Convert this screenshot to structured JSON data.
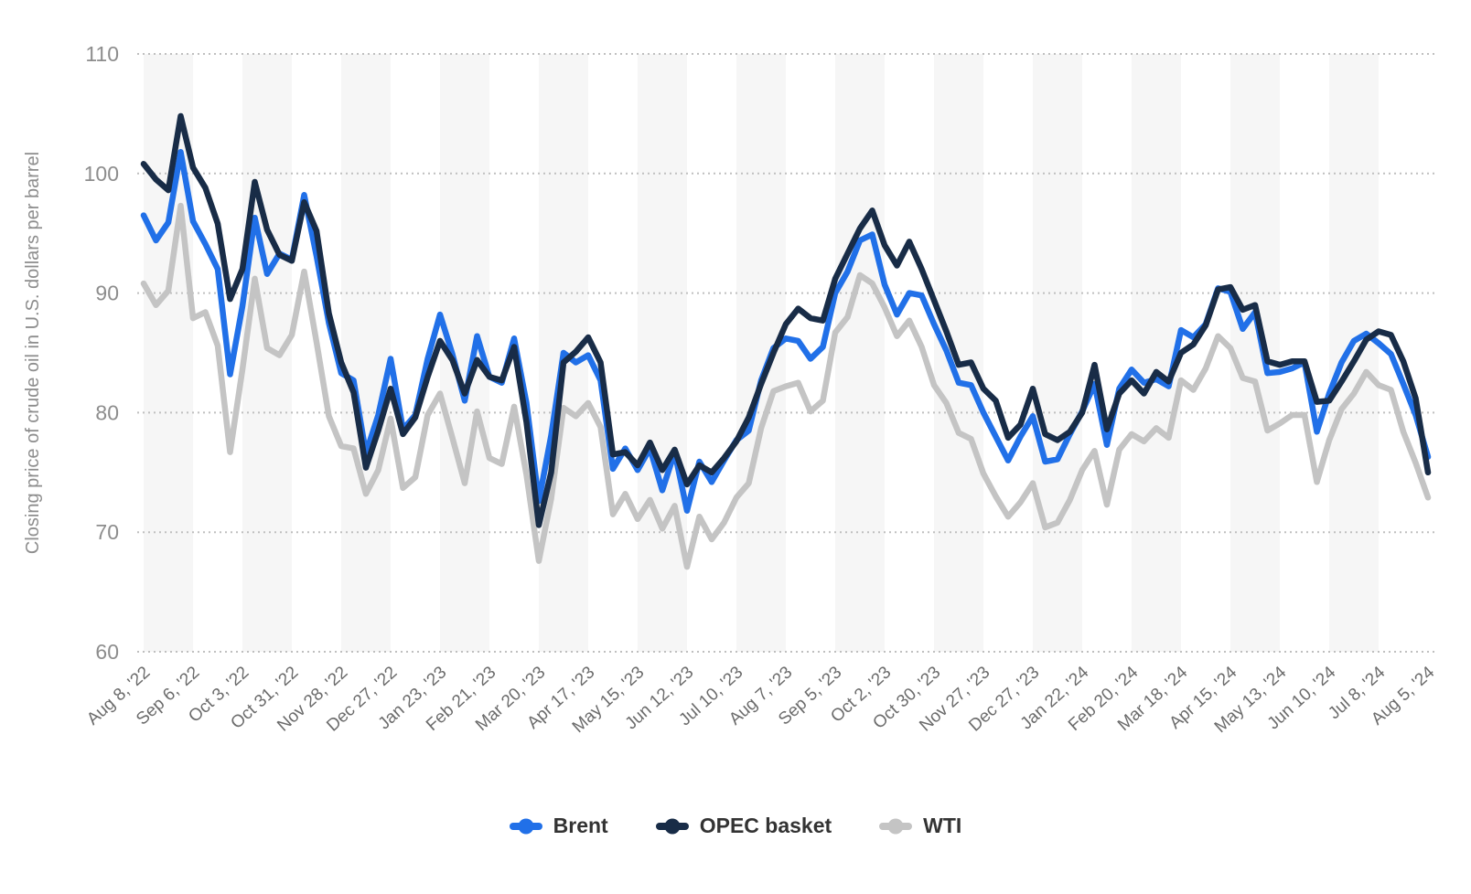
{
  "chart": {
    "y_axis_title": "Closing price of crude oil in U.S. dollars per barrel",
    "y_tick_labels": [
      "60",
      "70",
      "80",
      "90",
      "100",
      "110"
    ],
    "background_band_color": "#f6f6f6",
    "gridline_color": "#bfbfbf",
    "axis_text_color": "#8d8d8d"
  },
  "chart_data": {
    "type": "line",
    "title": "",
    "xlabel": "",
    "ylabel": "Closing price of crude oil in U.S. dollars per barrel",
    "ylim": [
      60,
      110
    ],
    "y_ticks": [
      60,
      70,
      80,
      90,
      100,
      110
    ],
    "grid": "horizontal-dotted",
    "legend_position": "bottom",
    "x_unit": "week",
    "weeks_per_tick": 4,
    "x_tick_labels": [
      "Aug 8, '22",
      "Sep 6, '22",
      "Oct 3, '22",
      "Oct 31, '22",
      "Nov 28, '22",
      "Dec 27, '22",
      "Jan 23, '23",
      "Feb 21, '23",
      "Mar 20, '23",
      "Apr 17, '23",
      "May 15, '23",
      "Jun 12, '23",
      "Jul 10, '23",
      "Aug 7, '23",
      "Sep 5, '23",
      "Oct 2, '23",
      "Oct 30, '23",
      "Nov 27, '23",
      "Dec 27, '23",
      "Jan 22, '24",
      "Feb 20, '24",
      "Mar 18, '24",
      "Apr 15, '24",
      "May 13, '24",
      "Jun 10, '24",
      "Jul 8, '24",
      "Aug 5, '24"
    ],
    "series": [
      {
        "name": "Brent",
        "color": "#2170e8",
        "values": [
          96.5,
          94.4,
          95.9,
          101.8,
          96.0,
          94.1,
          92.0,
          83.2,
          88.9,
          96.3,
          91.6,
          93.3,
          92.8,
          98.2,
          93.1,
          87.5,
          83.3,
          82.7,
          76.6,
          79.8,
          84.5,
          78.6,
          79.8,
          84.5,
          88.2,
          84.9,
          81.0,
          86.4,
          83.0,
          82.5,
          86.2,
          80.8,
          72.6,
          78.1,
          85.0,
          84.2,
          84.8,
          82.7,
          75.3,
          77.0,
          75.2,
          77.0,
          73.5,
          76.7,
          71.8,
          75.9,
          74.2,
          76.0,
          77.7,
          78.5,
          82.7,
          85.4,
          86.2,
          86.0,
          84.5,
          85.5,
          90.0,
          91.8,
          94.4,
          94.9,
          90.7,
          88.2,
          90.0,
          89.8,
          87.4,
          85.2,
          82.5,
          82.3,
          80.0,
          78.0,
          76.0,
          78.0,
          79.7,
          75.9,
          76.1,
          78.2,
          80.1,
          82.4,
          77.3,
          82.0,
          83.6,
          82.5,
          82.8,
          82.2,
          86.9,
          86.3,
          87.4,
          90.4,
          90.1,
          87.0,
          88.4,
          83.3,
          83.4,
          83.7,
          84.2,
          78.4,
          81.6,
          84.2,
          86.0,
          86.6,
          85.8,
          84.9,
          82.4,
          79.8,
          76.3
        ]
      },
      {
        "name": "OPEC basket",
        "color": "#182c47",
        "values": [
          100.8,
          99.5,
          98.6,
          104.8,
          100.5,
          98.8,
          95.8,
          89.5,
          92.0,
          99.3,
          95.3,
          93.2,
          92.7,
          97.6,
          95.2,
          88.3,
          84.2,
          81.7,
          75.4,
          78.5,
          82.0,
          78.2,
          79.6,
          83.0,
          86.0,
          84.4,
          81.6,
          84.4,
          83.0,
          82.7,
          85.5,
          79.2,
          70.6,
          75.0,
          84.2,
          85.1,
          86.3,
          84.2,
          76.5,
          76.7,
          75.6,
          77.5,
          75.2,
          76.9,
          74.0,
          75.6,
          75.0,
          76.2,
          77.6,
          79.6,
          82.4,
          85.0,
          87.4,
          88.7,
          87.9,
          87.7,
          91.2,
          93.3,
          95.4,
          96.9,
          94.0,
          92.3,
          94.3,
          92.0,
          89.4,
          86.8,
          84.0,
          84.2,
          82.0,
          81.0,
          77.9,
          79.0,
          82.0,
          78.2,
          77.7,
          78.4,
          80.0,
          84.0,
          78.6,
          81.6,
          82.7,
          81.6,
          83.4,
          82.6,
          85.0,
          85.7,
          87.3,
          90.3,
          90.5,
          88.6,
          89.0,
          84.3,
          84.0,
          84.3,
          84.3,
          80.9,
          81.0,
          82.6,
          84.3,
          86.1,
          86.8,
          86.5,
          84.3,
          81.2,
          75.0
        ]
      },
      {
        "name": "WTI",
        "color": "#c4c4c4",
        "values": [
          90.8,
          89.0,
          90.2,
          97.3,
          87.9,
          88.4,
          85.6,
          76.7,
          83.6,
          91.2,
          85.4,
          84.8,
          86.5,
          91.8,
          85.9,
          79.7,
          77.2,
          77.0,
          73.2,
          75.2,
          79.5,
          73.7,
          74.6,
          79.8,
          81.6,
          77.9,
          74.1,
          80.1,
          76.2,
          75.7,
          80.5,
          74.8,
          67.6,
          72.8,
          80.4,
          79.7,
          80.8,
          78.8,
          71.5,
          73.2,
          71.1,
          72.7,
          70.3,
          72.2,
          67.1,
          71.3,
          69.4,
          70.8,
          72.9,
          74.1,
          78.7,
          81.8,
          82.2,
          82.5,
          80.1,
          81.0,
          86.7,
          88.0,
          91.5,
          90.8,
          88.8,
          86.4,
          87.7,
          85.5,
          82.3,
          80.8,
          78.3,
          77.8,
          74.9,
          73.0,
          71.3,
          72.5,
          74.1,
          70.4,
          70.8,
          72.7,
          75.2,
          76.8,
          72.3,
          76.9,
          78.2,
          77.6,
          78.7,
          77.9,
          82.7,
          81.9,
          83.7,
          86.4,
          85.4,
          82.9,
          82.6,
          78.5,
          79.1,
          79.8,
          79.8,
          74.2,
          77.7,
          80.3,
          81.6,
          83.4,
          82.3,
          81.9,
          78.4,
          75.8,
          72.9
        ]
      }
    ]
  }
}
